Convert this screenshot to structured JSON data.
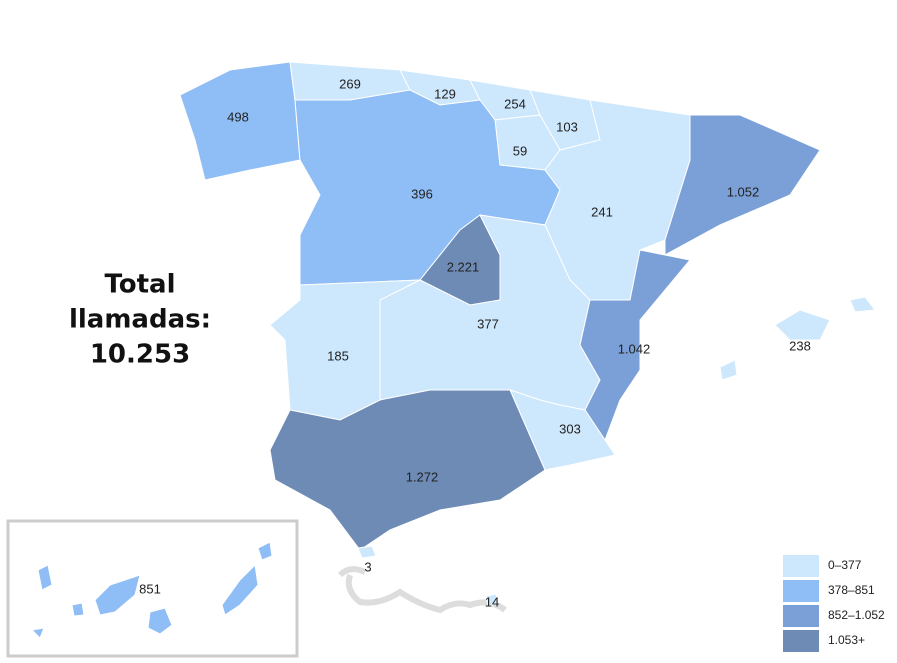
{
  "total": [
    "Total",
    "llamadas:",
    "10.253"
  ],
  "regions": [
    {
      "label": "498",
      "color": "#8fbdf5"
    },
    {
      "label": "269",
      "color": "#cde7fc"
    },
    {
      "label": "129",
      "color": "#cde7fc"
    },
    {
      "label": "254",
      "color": "#cde7fc"
    },
    {
      "label": "103",
      "color": "#cde7fc"
    },
    {
      "label": "59",
      "color": "#cde7fc"
    },
    {
      "label": "396",
      "color": "#8fbdf5"
    },
    {
      "label": "241",
      "color": "#cde7fc"
    },
    {
      "label": "1.052",
      "color": "#7b9fd7"
    },
    {
      "label": "2.221",
      "color": "#6e8bb6"
    },
    {
      "label": "377",
      "color": "#cde7fc"
    },
    {
      "label": "185",
      "color": "#cde7fc"
    },
    {
      "label": "1.042",
      "color": "#7b9fd7"
    },
    {
      "label": "303",
      "color": "#cde7fc"
    },
    {
      "label": "1.272",
      "color": "#6e8bb6"
    },
    {
      "label": "238",
      "color": "#cde7fc"
    },
    {
      "label": "851",
      "color": "#8fbdf5"
    },
    {
      "label": "3",
      "color": "#cde7fc"
    },
    {
      "label": "14",
      "color": "#cde7fc"
    }
  ],
  "legend": [
    {
      "label": "0–377",
      "color": "#cde7fc"
    },
    {
      "label": "378–851",
      "color": "#8fbdf5"
    },
    {
      "label": "852–1.052",
      "color": "#7b9fd7"
    },
    {
      "label": "1.053+",
      "color": "#6e8bb6"
    }
  ]
}
